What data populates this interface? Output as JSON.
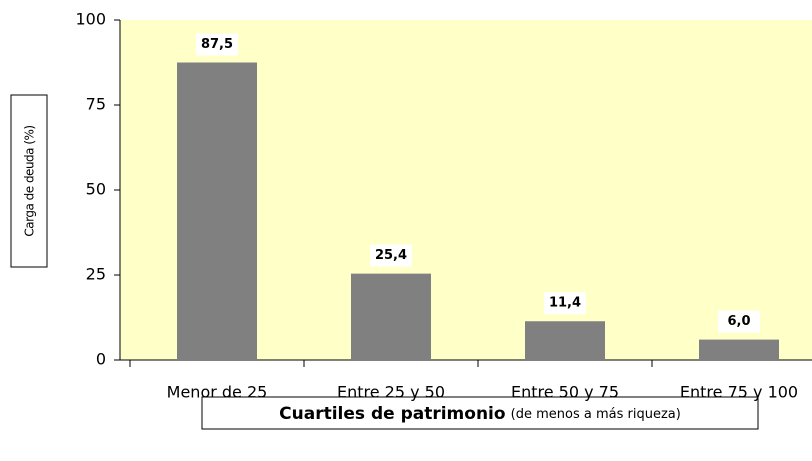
{
  "chart_data": {
    "type": "bar",
    "ylabel": "Carga de deuda (%)",
    "xlabel": "Cuartiles de patrimonio",
    "xlabel_note": "(de menos a más riqueza)",
    "categories": [
      "Menor de 25",
      "Entre 25 y 50",
      "Entre 50 y 75",
      "Entre 75 y 100"
    ],
    "values": [
      87.5,
      25.4,
      11.4,
      6.0
    ],
    "value_labels": [
      "87,5",
      "25,4",
      "11,4",
      "6,0"
    ],
    "color": "#808080",
    "ylim": [
      0,
      100
    ],
    "yticks": [
      0,
      25,
      50,
      75,
      100
    ],
    "grid": false
  }
}
